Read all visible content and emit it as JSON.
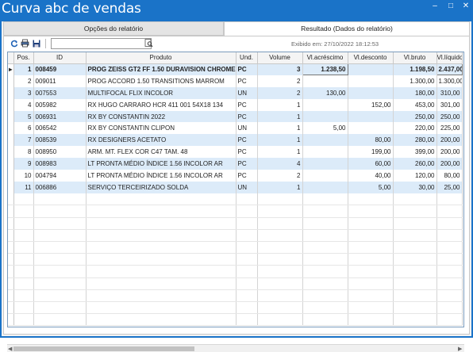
{
  "window": {
    "title": "Curva abc de vendas",
    "controls": [
      "–",
      "□",
      "✕"
    ]
  },
  "tabs": [
    {
      "label": "Opções do relatório",
      "active": false
    },
    {
      "label": "Resultado (Dados do relatório)",
      "active": true
    }
  ],
  "toolbar": {
    "search_value": ""
  },
  "exibido": "Exibido em: 27/10/2022 18:12:53",
  "table": {
    "headers": [
      "Pos.",
      "ID",
      "Produto",
      "Und.",
      "Volume",
      "Vl.acréscimo",
      "Vl.desconto",
      "Vl.bruto",
      "Vl.líquido"
    ],
    "rows": [
      [
        "1",
        "008459",
        "PROG ZEISS GT2 FF 1.50 DURAVISION CHROME",
        "PC",
        "3",
        "1.238,50",
        "",
        "1.198,50",
        "2.437,00"
      ],
      [
        "2",
        "009011",
        "PROG ACCORD 1.50 TRANSITIONS MARROM",
        "PC",
        "2",
        "",
        "",
        "1.300,00",
        "1.300,00"
      ],
      [
        "3",
        "007553",
        "MULTIFOCAL FLIX INCOLOR",
        "UN",
        "2",
        "130,00",
        "",
        "180,00",
        "310,00"
      ],
      [
        "4",
        "005982",
        "RX HUGO CARRARO HCR 411 001 54X18 134",
        "PC",
        "1",
        "",
        "152,00",
        "453,00",
        "301,00"
      ],
      [
        "5",
        "006931",
        "RX BY CONSTANTIN 2022",
        "PC",
        "1",
        "",
        "",
        "250,00",
        "250,00"
      ],
      [
        "6",
        "006542",
        "RX BY CONSTANTIN CLIPON",
        "UN",
        "1",
        "5,00",
        "",
        "220,00",
        "225,00"
      ],
      [
        "7",
        "008539",
        "RX DESIGNERS ACETATO",
        "PC",
        "1",
        "",
        "80,00",
        "280,00",
        "200,00"
      ],
      [
        "8",
        "008950",
        "ARM. MT. FLEX COR C47 TAM. 48",
        "PC",
        "1",
        "",
        "199,00",
        "399,00",
        "200,00"
      ],
      [
        "9",
        "008983",
        "LT PRONTA MÉDIO ÍNDICE 1.56 INCOLOR AR",
        "PC",
        "4",
        "",
        "60,00",
        "260,00",
        "200,00"
      ],
      [
        "10",
        "004794",
        "LT PRONTA MÉDIO ÍNDICE 1.56 INCOLOR AR",
        "PC",
        "2",
        "",
        "40,00",
        "120,00",
        "80,00"
      ],
      [
        "11",
        "006886",
        "SERVIÇO TERCEIRIZADO SOLDA",
        "UN",
        "1",
        "",
        "5,00",
        "30,00",
        "25,00"
      ]
    ]
  },
  "icons": {
    "refresh": "refresh-icon",
    "print": "print-icon",
    "save": "save-icon",
    "search": "search-preview-icon"
  }
}
